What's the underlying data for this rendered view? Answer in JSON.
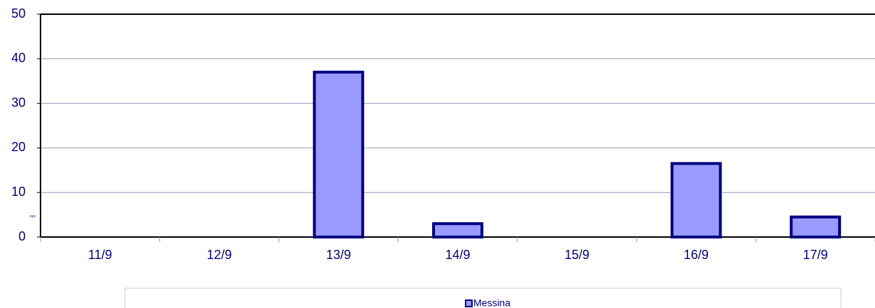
{
  "chart_data": {
    "type": "bar",
    "y_axis_label": "mm",
    "categories": [
      "11/9",
      "12/9",
      "13/9",
      "14/9",
      "15/9",
      "16/9",
      "17/9"
    ],
    "series": [
      {
        "name": "Messina",
        "color": "#9999ff",
        "values": [
          0,
          0,
          37,
          3,
          0,
          16.5,
          4.5
        ]
      }
    ],
    "ylim": [
      0,
      50
    ],
    "yticks": [
      0,
      10,
      20,
      30,
      40,
      50
    ],
    "grid": true,
    "legend": "bottom"
  }
}
